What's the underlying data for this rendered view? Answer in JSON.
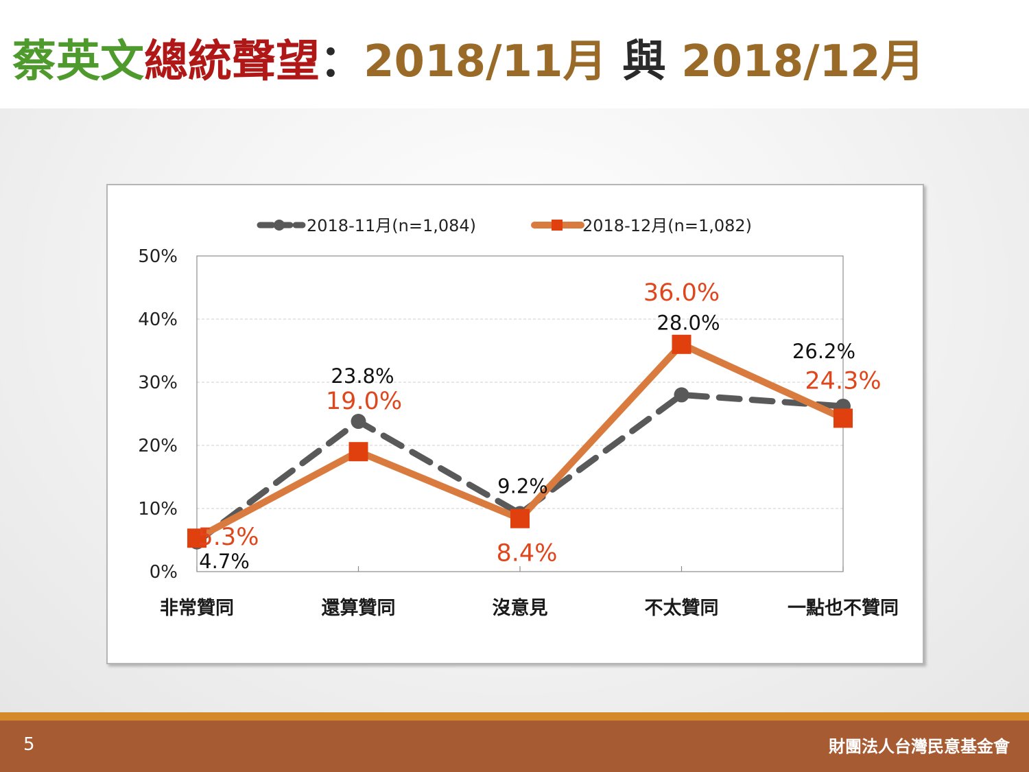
{
  "title": {
    "part_green": "蔡英文",
    "part_red": "總統聲望",
    "colon": "：",
    "part_date1": "2018/11月",
    "part_and": " 與 ",
    "part_date2": "2018/12月"
  },
  "colors": {
    "nov": "#595959",
    "dec": "#d97b3f",
    "dec_marker": "#e0400e",
    "dec_label": "#e0461c"
  },
  "chart_data": {
    "type": "line",
    "categories": [
      "非常贊同",
      "還算贊同",
      "沒意見",
      "不太贊同",
      "一點也不贊同"
    ],
    "ylim": [
      0,
      50
    ],
    "yticks": [
      "0%",
      "10%",
      "20%",
      "30%",
      "40%",
      "50%"
    ],
    "yticks_values": [
      0,
      10,
      20,
      30,
      40,
      50
    ],
    "grid": true,
    "legend_position": "top",
    "series": [
      {
        "name": "2018-11月(n=1,084)",
        "values": [
          4.7,
          23.8,
          9.2,
          28.0,
          26.2
        ],
        "labels": [
          "4.7%",
          "23.8%",
          "9.2%",
          "28.0%",
          "26.2%"
        ],
        "style": "dashed",
        "marker": "circle"
      },
      {
        "name": "2018-12月(n=1,082)",
        "values": [
          5.3,
          19.0,
          8.4,
          36.0,
          24.3
        ],
        "labels": [
          "5.3%",
          "19.0%",
          "8.4%",
          "36.0%",
          "24.3%"
        ],
        "style": "solid",
        "marker": "square"
      }
    ]
  },
  "footer": {
    "page_number": "5",
    "organization": "財團法人台灣民意基金會"
  }
}
